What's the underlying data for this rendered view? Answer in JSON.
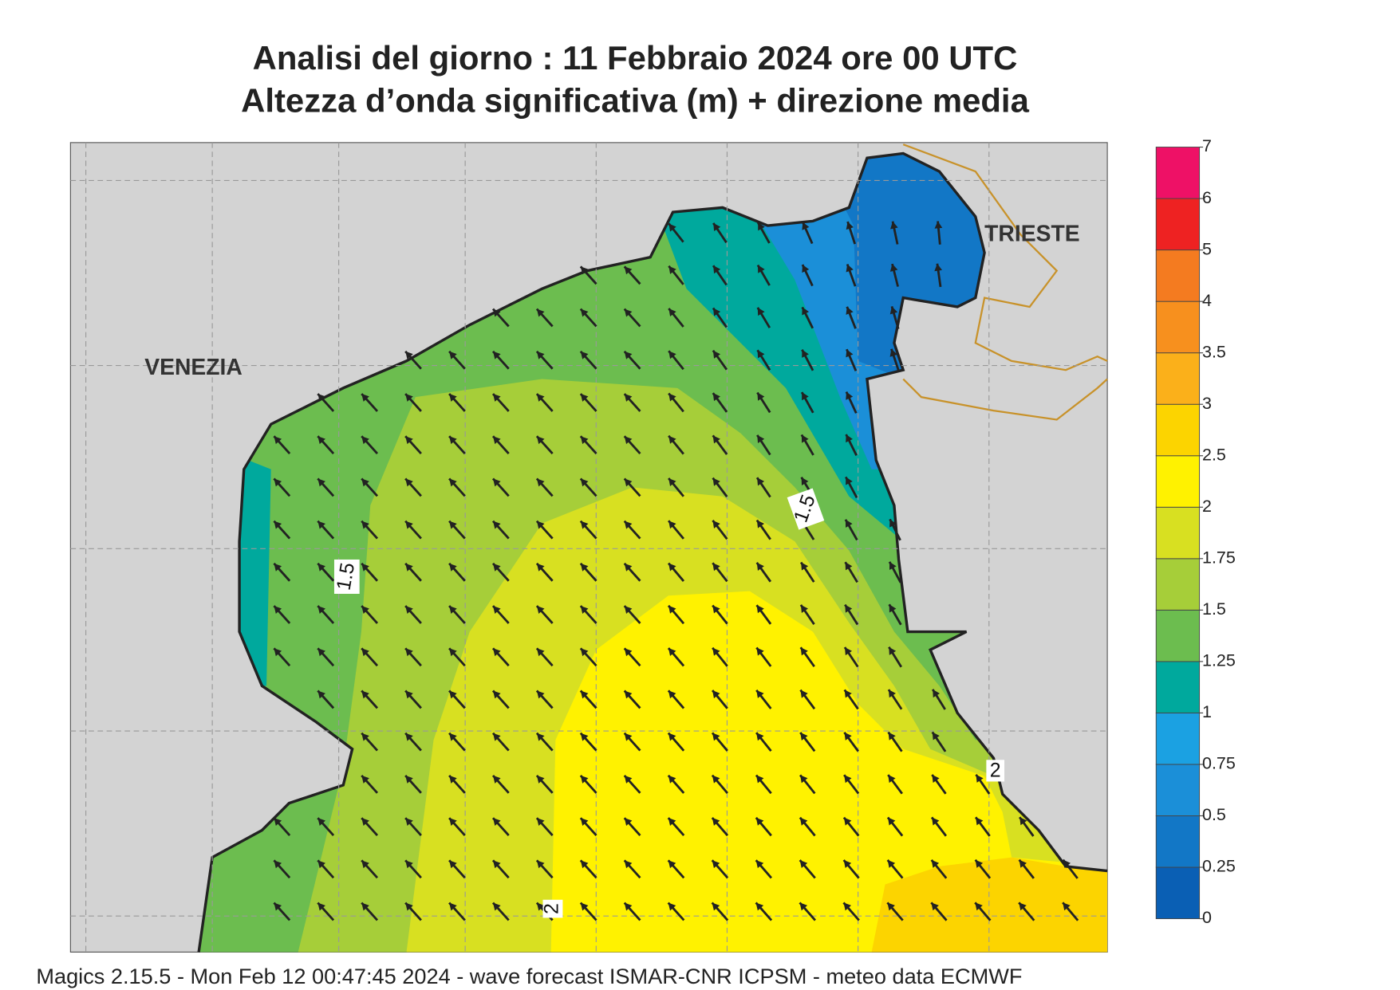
{
  "header": {
    "title": "Analisi del giorno :  11  Febbraio 2024   ore 00 UTC",
    "subtitle": "Altezza d’onda significativa (m) + direzione media"
  },
  "map": {
    "cities": [
      "VENEZIA",
      "TRIESTE"
    ],
    "contour_labels": [
      1.5,
      1.5,
      2,
      2
    ]
  },
  "colorbar": {
    "ticks": [
      0,
      0.25,
      0.5,
      0.75,
      1,
      1.25,
      1.5,
      1.75,
      2,
      2.5,
      3,
      3.5,
      4,
      5,
      6,
      7
    ],
    "colors": [
      "#0a5fb4",
      "#1277c6",
      "#1b8fd8",
      "#1ba1e2",
      "#00a99d",
      "#6cbd4f",
      "#a6ce39",
      "#d8e021",
      "#fff200",
      "#fcd400",
      "#fbb01a",
      "#f7901e",
      "#f47b20",
      "#ee2222",
      "#ee1166"
    ]
  },
  "footer": "Magics 2.15.5 - Mon Feb 12 00:47:45 2024 - wave forecast  ISMAR-CNR  ICPSM - meteo data   ECMWF"
}
